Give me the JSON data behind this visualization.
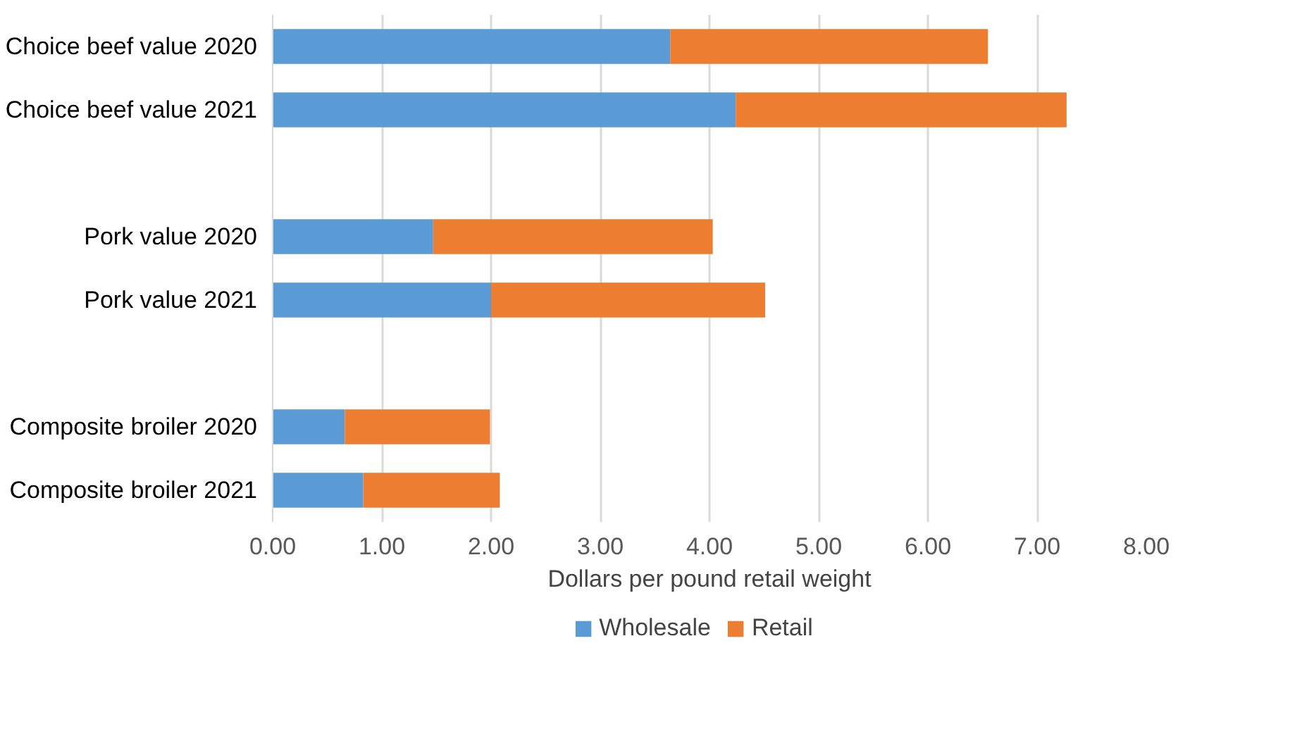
{
  "chart_data": {
    "type": "bar",
    "orientation": "horizontal",
    "stacked": true,
    "xlabel": "Dollars per pound retail weight",
    "categories": [
      "Choice beef value 2020",
      "Choice beef value 2021",
      null,
      "Pork value 2020",
      "Pork value 2021",
      null,
      "Composite broiler 2020",
      "Composite broiler 2021"
    ],
    "series": [
      {
        "name": "Wholesale",
        "color": "#5b9bd5",
        "values": [
          3.64,
          4.24,
          null,
          1.47,
          2.0,
          null,
          0.66,
          0.83
        ]
      },
      {
        "name": "Retail",
        "color": "#ed7d31",
        "values": [
          2.91,
          3.03,
          null,
          2.56,
          2.51,
          null,
          1.33,
          1.25
        ]
      }
    ],
    "xlim": [
      0,
      8
    ],
    "xticks": [
      {
        "value": 0,
        "label": "0.00"
      },
      {
        "value": 1,
        "label": "1.00"
      },
      {
        "value": 2,
        "label": "2.00"
      },
      {
        "value": 3,
        "label": "3.00"
      },
      {
        "value": 4,
        "label": "4.00"
      },
      {
        "value": 5,
        "label": "5.00"
      },
      {
        "value": 6,
        "label": "6.00"
      },
      {
        "value": 7,
        "label": "7.00"
      },
      {
        "value": 8,
        "label": "8.00"
      }
    ],
    "grid": "x",
    "legend": "bottom"
  }
}
